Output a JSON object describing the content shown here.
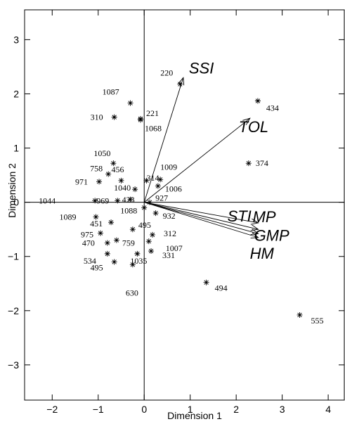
{
  "chart_data": {
    "type": "scatter",
    "title": "",
    "xlabel": "Dimension 1",
    "ylabel": "Dimension 2",
    "xlim": [
      -2.6,
      4.35
    ],
    "ylim": [
      -3.65,
      3.55
    ],
    "x_ticks": [
      -2,
      -1,
      0,
      1,
      2,
      3,
      4
    ],
    "y_ticks": [
      -3,
      -2,
      -1,
      0,
      1,
      2,
      3
    ],
    "x_tick_labels": [
      "−2",
      "−1",
      "0",
      "1",
      "2",
      "3",
      "4"
    ],
    "y_tick_labels": [
      "−3",
      "−2",
      "−1",
      "0",
      "1",
      "2",
      "3"
    ],
    "grid": false,
    "points": [
      {
        "label": "220",
        "x": 0.78,
        "y": 2.18
      },
      {
        "label": "1087",
        "x": -0.3,
        "y": 1.83
      },
      {
        "label": "221",
        "x": -0.08,
        "y": 1.54
      },
      {
        "label": "1068",
        "x": -0.08,
        "y": 1.52
      },
      {
        "label": "310",
        "x": -0.65,
        "y": 1.57
      },
      {
        "label": "434",
        "x": 2.47,
        "y": 1.87
      },
      {
        "label": "374",
        "x": 2.27,
        "y": 0.72
      },
      {
        "label": "1050",
        "x": -0.67,
        "y": 0.72
      },
      {
        "label": "758",
        "x": -0.78,
        "y": 0.52
      },
      {
        "label": "456",
        "x": -0.5,
        "y": 0.4
      },
      {
        "label": "971",
        "x": -0.98,
        "y": 0.38
      },
      {
        "label": "1040",
        "x": -0.2,
        "y": 0.24
      },
      {
        "label": "314",
        "x": 0.05,
        "y": 0.4
      },
      {
        "label": "1009",
        "x": 0.35,
        "y": 0.42
      },
      {
        "label": "1006",
        "x": 0.3,
        "y": 0.3
      },
      {
        "label": "1044",
        "x": -1.07,
        "y": 0.03
      },
      {
        "label": "969",
        "x": -0.58,
        "y": 0.03
      },
      {
        "label": "423",
        "x": -0.3,
        "y": 0.05
      },
      {
        "label": "927",
        "x": 0.12,
        "y": 0.0
      },
      {
        "label": "1088",
        "x": 0.0,
        "y": -0.1
      },
      {
        "label": "932",
        "x": 0.25,
        "y": -0.2
      },
      {
        "label": "1089",
        "x": -1.05,
        "y": -0.27
      },
      {
        "label": "451",
        "x": -0.72,
        "y": -0.37
      },
      {
        "label": "975",
        "x": -0.95,
        "y": -0.57
      },
      {
        "label": "495",
        "x": -0.25,
        "y": -0.5
      },
      {
        "label": "312",
        "x": 0.18,
        "y": -0.6
      },
      {
        "label": "470",
        "x": -0.8,
        "y": -0.75
      },
      {
        "label": "759",
        "x": -0.6,
        "y": -0.7
      },
      {
        "label": "1007",
        "x": 0.1,
        "y": -0.72
      },
      {
        "label": "534",
        "x": -0.8,
        "y": -0.95
      },
      {
        "label": "1035",
        "x": -0.15,
        "y": -0.95
      },
      {
        "label": "331",
        "x": 0.15,
        "y": -0.9
      },
      {
        "label": "495",
        "x": -0.65,
        "y": -1.1
      },
      {
        "label": "630",
        "x": -0.25,
        "y": -1.15
      },
      {
        "label": "494",
        "x": 1.35,
        "y": -1.48
      },
      {
        "label": "555",
        "x": 3.38,
        "y": -2.08
      }
    ],
    "vectors": [
      {
        "name": "SSI",
        "x": 0.85,
        "y": 2.3
      },
      {
        "name": "TOL",
        "x": 2.3,
        "y": 1.55
      },
      {
        "name": "STI",
        "x": 2.48,
        "y": -0.38
      },
      {
        "name": "MP",
        "x": 2.48,
        "y": -0.5
      },
      {
        "name": "GMP",
        "x": 2.48,
        "y": -0.58
      },
      {
        "name": "HM",
        "x": 2.48,
        "y": -0.65
      }
    ]
  }
}
